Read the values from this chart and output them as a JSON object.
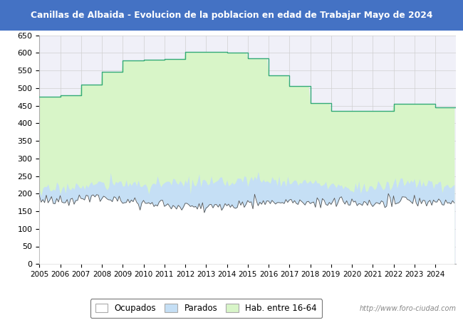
{
  "title": "Canillas de Albaida - Evolucion de la poblacion en edad de Trabajar Mayo de 2024",
  "title_bg": "#4472c4",
  "title_color": "#ffffff",
  "ylim": [
    0,
    650
  ],
  "yticks": [
    0,
    50,
    100,
    150,
    200,
    250,
    300,
    350,
    400,
    450,
    500,
    550,
    600,
    650
  ],
  "years": [
    2005,
    2006,
    2007,
    2008,
    2009,
    2010,
    2011,
    2012,
    2013,
    2014,
    2015,
    2016,
    2017,
    2018,
    2019,
    2020,
    2021,
    2022,
    2023,
    2024
  ],
  "hab16_64": [
    475,
    480,
    510,
    545,
    578,
    580,
    583,
    603,
    603,
    600,
    585,
    535,
    505,
    457,
    435,
    435,
    435,
    455,
    455,
    445
  ],
  "parados_mean": [
    210,
    220,
    225,
    230,
    228,
    225,
    230,
    230,
    230,
    238,
    240,
    238,
    230,
    228,
    220,
    218,
    218,
    235,
    228,
    222
  ],
  "ocupados_mean": [
    180,
    183,
    188,
    193,
    178,
    170,
    165,
    163,
    163,
    170,
    178,
    175,
    172,
    175,
    175,
    174,
    173,
    178,
    177,
    175
  ],
  "watermark": "http://www.foro-ciudad.com",
  "legend_labels": [
    "Ocupados",
    "Parados",
    "Hab. entre 16-64"
  ],
  "grid_color": "#d0d0d0",
  "hab_line_color": "#33aa77",
  "parados_fill_color": "#c5dff5",
  "hab_fill_color": "#d8f5c8",
  "ocupados_line_color": "#555555",
  "bg_color": "#f0f0f8"
}
